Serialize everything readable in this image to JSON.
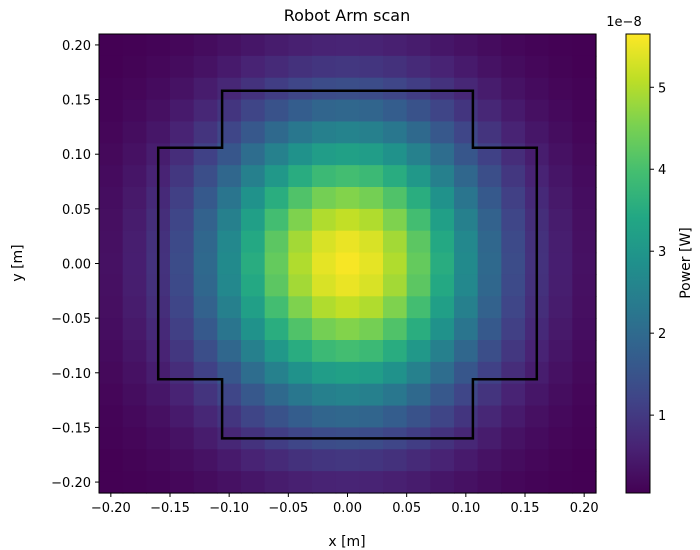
{
  "chart_data": {
    "type": "heatmap",
    "title": "Robot Arm scan",
    "xlabel": "x [m]",
    "ylabel": "y [m]",
    "xlim": [
      -0.21,
      0.21
    ],
    "ylim": [
      -0.21,
      0.21
    ],
    "grid_count": 21,
    "x_ticks": [
      -0.2,
      -0.15,
      -0.1,
      -0.05,
      0.0,
      0.05,
      0.1,
      0.15,
      0.2
    ],
    "x_tick_labels": [
      "−0.20",
      "−0.15",
      "−0.10",
      "−0.05",
      "0.00",
      "0.05",
      "0.10",
      "0.15",
      "0.20"
    ],
    "y_ticks": [
      -0.2,
      -0.15,
      -0.1,
      -0.05,
      0.0,
      0.05,
      0.1,
      0.15,
      0.2
    ],
    "y_tick_labels": [
      "−0.20",
      "−0.15",
      "−0.10",
      "−0.05",
      "0.00",
      "0.05",
      "0.10",
      "0.15",
      "0.20"
    ],
    "colormap": "viridis",
    "colorbar": {
      "label": "Power [W]",
      "scale_label": "1e−8",
      "range": [
        0.05,
        5.65
      ],
      "ticks": [
        1,
        2,
        3,
        4,
        5
      ],
      "tick_labels": [
        "1",
        "2",
        "3",
        "4",
        "5"
      ]
    },
    "field_model": {
      "peak": 5.6,
      "center": [
        0.0,
        0.0
      ],
      "falloff_x": 3.2,
      "falloff_y": 2.4
    },
    "outline": {
      "color": "#000000",
      "points": [
        [
          -0.106,
          0.158
        ],
        [
          0.106,
          0.158
        ],
        [
          0.106,
          0.106
        ],
        [
          0.16,
          0.106
        ],
        [
          0.16,
          -0.106
        ],
        [
          0.106,
          -0.106
        ],
        [
          0.106,
          -0.16
        ],
        [
          -0.106,
          -0.16
        ],
        [
          -0.106,
          -0.106
        ],
        [
          -0.16,
          -0.106
        ],
        [
          -0.16,
          0.106
        ],
        [
          -0.106,
          0.106
        ]
      ]
    }
  }
}
